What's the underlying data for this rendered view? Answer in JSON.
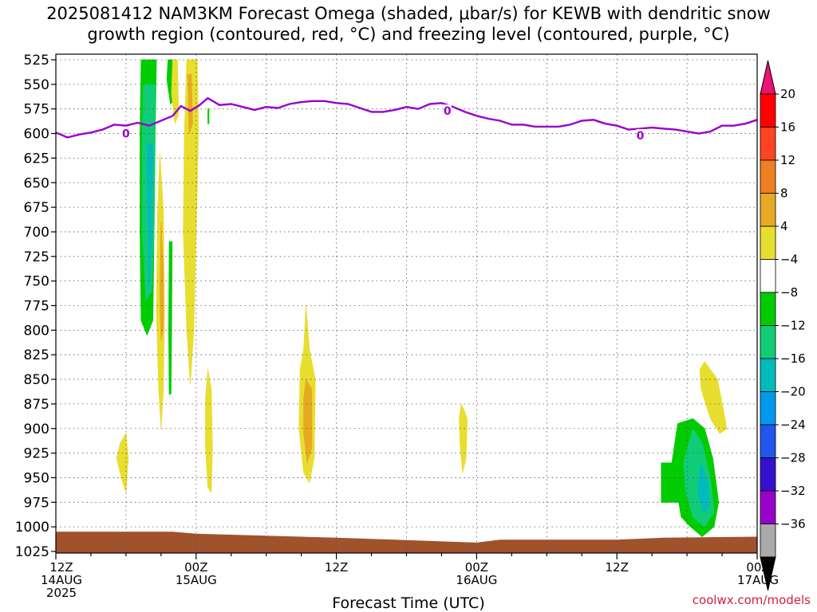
{
  "title_line1": "2025081412 NAM3KM Forecast Omega (shaded, μbar/s) for KEWB with dendritic snow",
  "title_line2": "growth region (contoured, red, °C) and freezing level (contoured, purple, °C)",
  "credit": "coolwx.com/models",
  "chart_data": {
    "type": "heatmap",
    "xlabel": "Forecast Time (UTC)",
    "x_ticks": [
      {
        "hour": 0,
        "lines": [
          "12Z",
          "14AUG",
          "2025"
        ]
      },
      {
        "hour": 12,
        "lines": [
          "00Z",
          "15AUG"
        ]
      },
      {
        "hour": 24,
        "lines": [
          "12Z"
        ]
      },
      {
        "hour": 36,
        "lines": [
          "00Z",
          "16AUG"
        ]
      },
      {
        "hour": 48,
        "lines": [
          "12Z"
        ]
      },
      {
        "hour": 60,
        "lines": [
          "00Z",
          "17AUG"
        ]
      }
    ],
    "xlim": [
      0,
      60
    ],
    "y_ticks": [
      525,
      550,
      575,
      600,
      625,
      650,
      675,
      700,
      725,
      750,
      775,
      800,
      825,
      850,
      875,
      900,
      925,
      950,
      975,
      1000,
      1025
    ],
    "ylim": [
      1025,
      525
    ],
    "grid": true,
    "colorbar": {
      "labels": [
        "20",
        "16",
        "12",
        "8",
        "4",
        "−4",
        "−8",
        "−12",
        "−16",
        "−20",
        "−24",
        "−28",
        "−32",
        "−36"
      ],
      "colors": [
        "#ff0000",
        "#ff4422",
        "#ee7f22",
        "#e6aa22",
        "#e8de30",
        "#ffffff",
        "#00cc00",
        "#11cc77",
        "#00bbbb",
        "#0099ee",
        "#2255ee",
        "#3311cc",
        "#9900cc",
        "#aaaaaa"
      ],
      "top_color": "#ee1177",
      "bottom_color": "#000000"
    },
    "freezing_level": {
      "color": "#9900cc",
      "label": "0",
      "label_points": [
        [
          6,
          600
        ],
        [
          33.5,
          577
        ],
        [
          50,
          602
        ]
      ],
      "points": [
        [
          0,
          599
        ],
        [
          1,
          604
        ],
        [
          2,
          601
        ],
        [
          3,
          599
        ],
        [
          4,
          596
        ],
        [
          5,
          591
        ],
        [
          6,
          592
        ],
        [
          7,
          589
        ],
        [
          8,
          592
        ],
        [
          9,
          587
        ],
        [
          10,
          582
        ],
        [
          10.7,
          572
        ],
        [
          11.5,
          577
        ],
        [
          12.3,
          571
        ],
        [
          13,
          564
        ],
        [
          14,
          571
        ],
        [
          15,
          570
        ],
        [
          16,
          573
        ],
        [
          17,
          576
        ],
        [
          18,
          573
        ],
        [
          19,
          574
        ],
        [
          20,
          570
        ],
        [
          21,
          568
        ],
        [
          22,
          567
        ],
        [
          23,
          567
        ],
        [
          24,
          569
        ],
        [
          25,
          570
        ],
        [
          26,
          574
        ],
        [
          27,
          578
        ],
        [
          28,
          578
        ],
        [
          29,
          576
        ],
        [
          30,
          573
        ],
        [
          31,
          575
        ],
        [
          32,
          570
        ],
        [
          33,
          569
        ],
        [
          34,
          573
        ],
        [
          35,
          578
        ],
        [
          36,
          582
        ],
        [
          37,
          585
        ],
        [
          38,
          587
        ],
        [
          39,
          591
        ],
        [
          40,
          591
        ],
        [
          41,
          593
        ],
        [
          42,
          593
        ],
        [
          43,
          593
        ],
        [
          44,
          591
        ],
        [
          45,
          587
        ],
        [
          46,
          586
        ],
        [
          47,
          590
        ],
        [
          48,
          592
        ],
        [
          49,
          596
        ],
        [
          50,
          595
        ],
        [
          51,
          594
        ],
        [
          52,
          595
        ],
        [
          53,
          596
        ],
        [
          54,
          598
        ],
        [
          55,
          600
        ],
        [
          56,
          598
        ],
        [
          57,
          592
        ],
        [
          58,
          592
        ],
        [
          59,
          590
        ],
        [
          60,
          586
        ]
      ]
    },
    "surface_color": "#a0522d",
    "surface_points": [
      [
        0,
        1005
      ],
      [
        10,
        1005
      ],
      [
        12,
        1007
      ],
      [
        24,
        1011
      ],
      [
        36,
        1016
      ],
      [
        38,
        1013
      ],
      [
        48,
        1013
      ],
      [
        52,
        1011
      ],
      [
        60,
        1010
      ]
    ],
    "regions": [
      {
        "color": "#00cc00",
        "points": [
          [
            7.3,
            525
          ],
          [
            8.6,
            525
          ],
          [
            8.5,
            600
          ],
          [
            8.4,
            700
          ],
          [
            8.3,
            790
          ],
          [
            7.8,
            805
          ],
          [
            7.3,
            790
          ],
          [
            7.2,
            700
          ],
          [
            7.2,
            600
          ]
        ]
      },
      {
        "color": "#11cc77",
        "points": [
          [
            7.5,
            550
          ],
          [
            8.5,
            550
          ],
          [
            8.4,
            700
          ],
          [
            8.2,
            760
          ],
          [
            7.7,
            770
          ],
          [
            7.4,
            700
          ],
          [
            7.4,
            600
          ]
        ]
      },
      {
        "color": "#00bbbb",
        "points": [
          [
            7.8,
            610
          ],
          [
            8.3,
            610
          ],
          [
            8.2,
            700
          ],
          [
            8.0,
            760
          ],
          [
            7.9,
            700
          ]
        ]
      },
      {
        "color": "#00cc00",
        "points": [
          [
            9.6,
            525
          ],
          [
            10.1,
            525
          ],
          [
            10.2,
            565
          ],
          [
            9.8,
            570
          ],
          [
            9.5,
            545
          ]
        ]
      },
      {
        "color": "#00cc00",
        "points": [
          [
            9.7,
            710
          ],
          [
            9.95,
            710
          ],
          [
            9.9,
            810
          ],
          [
            9.85,
            865
          ],
          [
            9.7,
            865
          ],
          [
            9.65,
            800
          ]
        ]
      },
      {
        "color": "#00cc00",
        "points": [
          [
            13.0,
            575
          ],
          [
            13.1,
            575
          ],
          [
            13.1,
            590
          ],
          [
            13.0,
            590
          ]
        ]
      },
      {
        "color": "#e8de30",
        "points": [
          [
            11.2,
            525
          ],
          [
            12.1,
            525
          ],
          [
            12.2,
            600
          ],
          [
            12.0,
            700
          ],
          [
            11.8,
            800
          ],
          [
            11.5,
            855
          ],
          [
            11.2,
            800
          ],
          [
            10.9,
            700
          ],
          [
            11.0,
            600
          ]
        ]
      },
      {
        "color": "#e8de30",
        "points": [
          [
            8.9,
            620
          ],
          [
            9.2,
            680
          ],
          [
            9.3,
            780
          ],
          [
            9.2,
            860
          ],
          [
            9.0,
            900
          ],
          [
            8.8,
            860
          ],
          [
            8.6,
            780
          ],
          [
            8.7,
            680
          ]
        ]
      },
      {
        "color": "#e6aa22",
        "points": [
          [
            9.0,
            690
          ],
          [
            9.2,
            740
          ],
          [
            9.2,
            800
          ],
          [
            9.0,
            810
          ],
          [
            8.9,
            760
          ]
        ]
      },
      {
        "color": "#e8de30",
        "points": [
          [
            10.0,
            525
          ],
          [
            10.4,
            525
          ],
          [
            10.5,
            580
          ],
          [
            10.2,
            590
          ],
          [
            9.9,
            560
          ]
        ]
      },
      {
        "color": "#e6aa22",
        "points": [
          [
            11.3,
            540
          ],
          [
            11.6,
            540
          ],
          [
            11.7,
            590
          ],
          [
            11.4,
            600
          ]
        ]
      },
      {
        "color": "#e8de30",
        "points": [
          [
            13.0,
            840
          ],
          [
            13.3,
            860
          ],
          [
            13.4,
            920
          ],
          [
            13.3,
            965
          ],
          [
            13.0,
            960
          ],
          [
            12.8,
            920
          ],
          [
            12.8,
            870
          ]
        ]
      },
      {
        "color": "#e8de30",
        "points": [
          [
            5.5,
            915
          ],
          [
            6.0,
            905
          ],
          [
            6.2,
            930
          ],
          [
            6.0,
            965
          ],
          [
            5.6,
            950
          ],
          [
            5.2,
            930
          ]
        ]
      },
      {
        "color": "#e8de30",
        "points": [
          [
            21.4,
            775
          ],
          [
            21.7,
            820
          ],
          [
            22.2,
            850
          ],
          [
            22.1,
            930
          ],
          [
            21.7,
            955
          ],
          [
            21.2,
            945
          ],
          [
            20.8,
            900
          ],
          [
            20.9,
            840
          ],
          [
            21.2,
            820
          ]
        ]
      },
      {
        "color": "#e6aa22",
        "points": [
          [
            21.4,
            850
          ],
          [
            21.9,
            860
          ],
          [
            21.9,
            920
          ],
          [
            21.5,
            935
          ],
          [
            21.2,
            905
          ],
          [
            21.2,
            870
          ]
        ]
      },
      {
        "color": "#e8de30",
        "points": [
          [
            34.7,
            875
          ],
          [
            35.2,
            890
          ],
          [
            35.1,
            930
          ],
          [
            34.8,
            945
          ],
          [
            34.6,
            920
          ],
          [
            34.5,
            890
          ]
        ]
      },
      {
        "color": "#e8de30",
        "points": [
          [
            55.5,
            832
          ],
          [
            56.6,
            850
          ],
          [
            57.1,
            880
          ],
          [
            57.4,
            900
          ],
          [
            56.8,
            905
          ],
          [
            56.0,
            890
          ],
          [
            55.2,
            860
          ],
          [
            55.1,
            840
          ]
        ]
      },
      {
        "color": "#00cc00",
        "points": [
          [
            53.2,
            895
          ],
          [
            54.5,
            890
          ],
          [
            55.5,
            900
          ],
          [
            56.2,
            930
          ],
          [
            56.7,
            975
          ],
          [
            56.3,
            1000
          ],
          [
            55.3,
            1010
          ],
          [
            54.3,
            1000
          ],
          [
            53.5,
            990
          ],
          [
            53.3,
            975
          ],
          [
            51.8,
            975
          ],
          [
            51.8,
            935
          ],
          [
            52.7,
            935
          ]
        ]
      },
      {
        "color": "#11cc77",
        "points": [
          [
            54.5,
            900
          ],
          [
            55.3,
            915
          ],
          [
            56.0,
            950
          ],
          [
            56.3,
            985
          ],
          [
            55.5,
            1000
          ],
          [
            54.5,
            990
          ],
          [
            53.9,
            965
          ],
          [
            53.7,
            935
          ]
        ]
      },
      {
        "color": "#00bbbb",
        "points": [
          [
            55.2,
            935
          ],
          [
            55.8,
            955
          ],
          [
            55.9,
            980
          ],
          [
            55.4,
            985
          ],
          [
            54.9,
            965
          ]
        ]
      }
    ]
  }
}
